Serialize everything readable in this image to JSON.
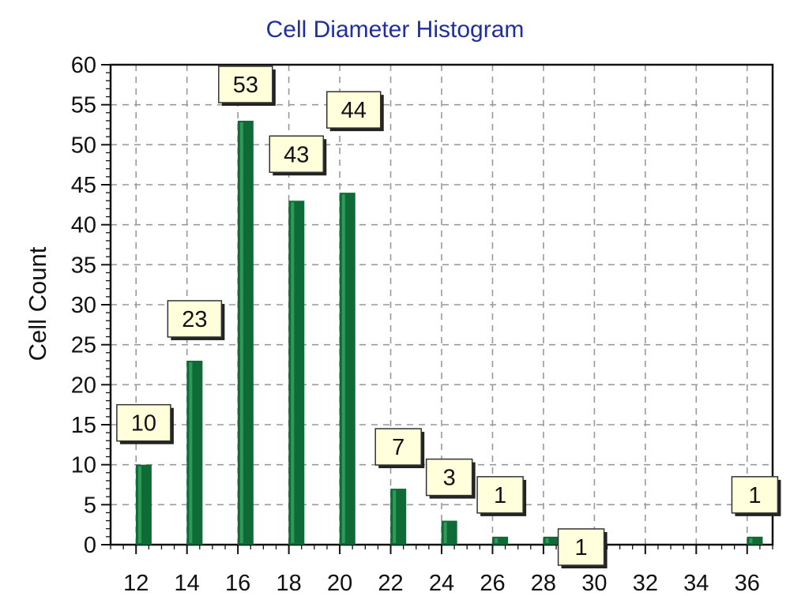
{
  "chart_data": {
    "type": "bar",
    "title": "Cell Diameter Histogram",
    "xlabel": "",
    "ylabel": "Cell Count",
    "x_ticks": [
      12,
      14,
      16,
      18,
      20,
      22,
      24,
      26,
      28,
      30,
      32,
      34,
      36
    ],
    "x_range": [
      11,
      37
    ],
    "y_ticks": [
      0,
      5,
      10,
      15,
      20,
      25,
      30,
      35,
      40,
      45,
      50,
      55,
      60
    ],
    "ylim": [
      0,
      60
    ],
    "grid": true,
    "bars": [
      {
        "x": 12.3,
        "value": 10,
        "label": "10"
      },
      {
        "x": 14.3,
        "value": 23,
        "label": "23"
      },
      {
        "x": 16.3,
        "value": 53,
        "label": "53"
      },
      {
        "x": 18.3,
        "value": 43,
        "label": "43"
      },
      {
        "x": 20.3,
        "value": 44,
        "label": "44"
      },
      {
        "x": 22.3,
        "value": 7,
        "label": "7"
      },
      {
        "x": 24.3,
        "value": 3,
        "label": "3"
      },
      {
        "x": 26.3,
        "value": 1,
        "label": "1"
      },
      {
        "x": 28.3,
        "value": 1,
        "label": "1"
      },
      {
        "x": 36.3,
        "value": 1,
        "label": "1"
      }
    ],
    "colors": {
      "bar": "#0f6b36",
      "bar_highlight": "#2e9a57",
      "label_fill": "#ffffdc",
      "title": "#1f2f9e",
      "grid": "#999999"
    }
  }
}
